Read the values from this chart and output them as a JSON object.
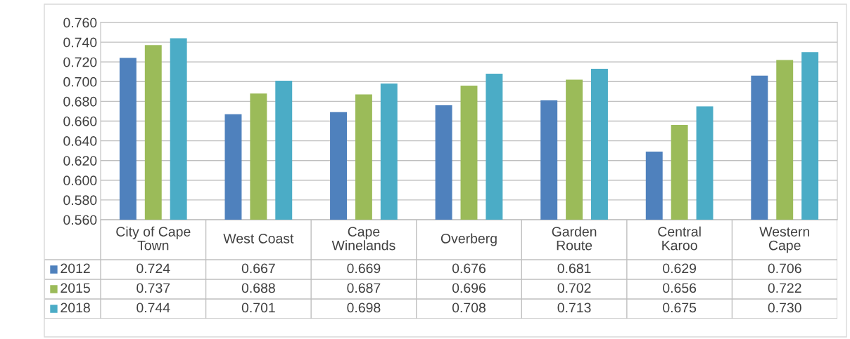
{
  "chart_data": {
    "type": "bar",
    "categories": [
      "City of Cape\nTown",
      "West Coast",
      "Cape\nWinelands",
      "Overberg",
      "Garden\nRoute",
      "Central\nKaroo",
      "Western\nCape"
    ],
    "series": [
      {
        "name": "2012",
        "color": "#4f81bd",
        "values": [
          0.724,
          0.667,
          0.669,
          0.676,
          0.681,
          0.629,
          0.706
        ],
        "value_labels": [
          "0.724",
          "0.667",
          "0.669",
          "0.676",
          "0.681",
          "0.629",
          "0.706"
        ]
      },
      {
        "name": "2015",
        "color": "#9bbb59",
        "values": [
          0.737,
          0.688,
          0.687,
          0.696,
          0.702,
          0.656,
          0.722
        ],
        "value_labels": [
          "0.737",
          "0.688",
          "0.687",
          "0.696",
          "0.702",
          "0.656",
          "0.722"
        ]
      },
      {
        "name": "2018",
        "color": "#4bacc6",
        "values": [
          0.744,
          0.701,
          0.698,
          0.708,
          0.713,
          0.675,
          0.73
        ],
        "value_labels": [
          "0.744",
          "0.701",
          "0.698",
          "0.708",
          "0.713",
          "0.675",
          "0.730"
        ]
      }
    ],
    "ylim": [
      0.56,
      0.76
    ],
    "yticks": [
      {
        "value": 0.56,
        "label": "0.560"
      },
      {
        "value": 0.58,
        "label": "0.580"
      },
      {
        "value": 0.6,
        "label": "0.600"
      },
      {
        "value": 0.62,
        "label": "0.620"
      },
      {
        "value": 0.64,
        "label": "0.640"
      },
      {
        "value": 0.66,
        "label": "0.660"
      },
      {
        "value": 0.68,
        "label": "0.680"
      },
      {
        "value": 0.7,
        "label": "0.700"
      },
      {
        "value": 0.72,
        "label": "0.720"
      },
      {
        "value": 0.74,
        "label": "0.740"
      },
      {
        "value": 0.76,
        "label": "0.760"
      }
    ],
    "grid": "y",
    "legend": "bottom left"
  }
}
